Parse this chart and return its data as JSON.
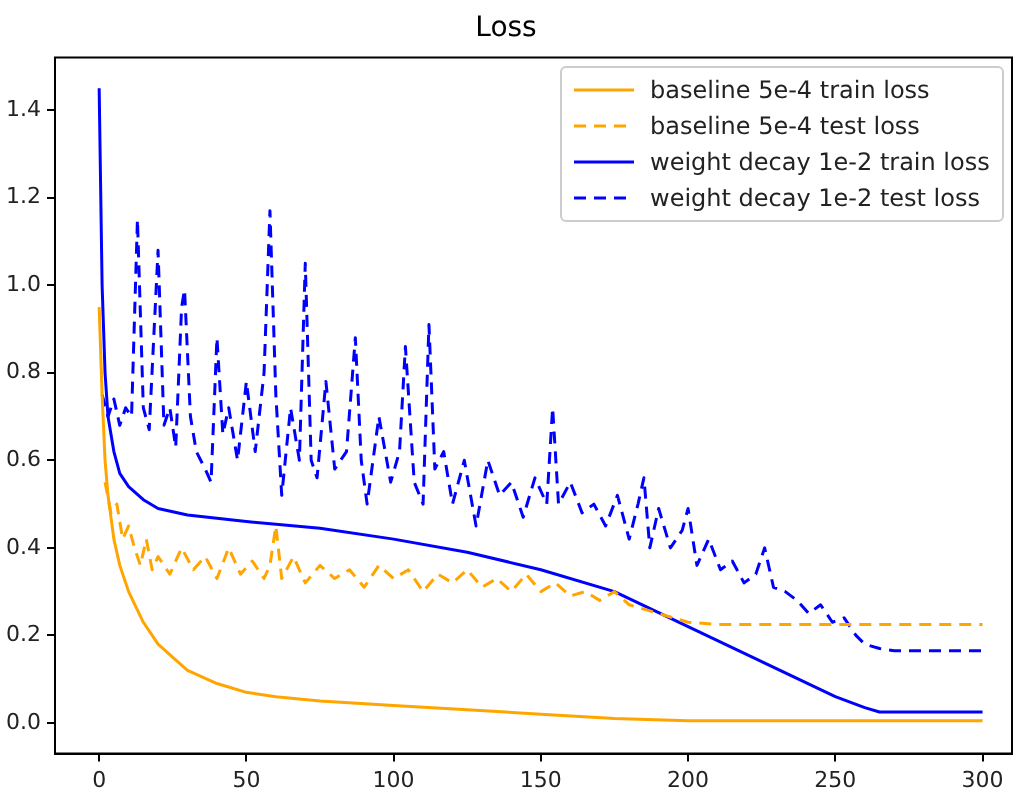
{
  "chart_data": {
    "type": "line",
    "title": "Loss",
    "xlim": [
      -15,
      310
    ],
    "ylim": [
      -0.07,
      1.52
    ],
    "xticks": [
      0,
      50,
      100,
      150,
      200,
      250,
      300
    ],
    "yticks": [
      {
        "value": 0,
        "label": "0.0"
      },
      {
        "value": 0.2,
        "label": "0.2"
      },
      {
        "value": 0.4,
        "label": "0.4"
      },
      {
        "value": 0.6,
        "label": "0.6"
      },
      {
        "value": 0.8,
        "label": "0.8"
      },
      {
        "value": 1,
        "label": "1.0"
      },
      {
        "value": 1.2,
        "label": "1.2"
      },
      {
        "value": 1.4,
        "label": "1.4"
      }
    ],
    "grid": false,
    "legend": "top right",
    "marker": "none",
    "series": [
      {
        "name": "baseline 5e-4 train loss",
        "color": "#ffa500",
        "line_style": "solid",
        "x": [
          0,
          1,
          2,
          3,
          5,
          7,
          10,
          15,
          20,
          25,
          30,
          40,
          50,
          60,
          75,
          100,
          125,
          150,
          175,
          200,
          250,
          300
        ],
        "values": [
          0.95,
          0.75,
          0.6,
          0.52,
          0.42,
          0.36,
          0.3,
          0.23,
          0.18,
          0.15,
          0.12,
          0.09,
          0.07,
          0.06,
          0.05,
          0.04,
          0.03,
          0.02,
          0.01,
          0.005,
          0.005,
          0.005
        ]
      },
      {
        "name": "baseline 5e-4 test loss",
        "color": "#ffa500",
        "line_style": "dashed",
        "x": [
          2,
          4,
          6,
          8,
          10,
          12,
          14,
          16,
          18,
          20,
          24,
          28,
          32,
          36,
          40,
          44,
          48,
          52,
          56,
          58,
          60,
          62,
          66,
          70,
          75,
          80,
          85,
          90,
          95,
          100,
          105,
          110,
          115,
          120,
          125,
          130,
          135,
          140,
          145,
          150,
          155,
          160,
          165,
          170,
          175,
          180,
          185,
          190,
          195,
          200,
          210,
          220,
          240,
          260,
          280,
          300
        ],
        "values": [
          0.55,
          0.48,
          0.5,
          0.42,
          0.45,
          0.4,
          0.36,
          0.42,
          0.35,
          0.38,
          0.34,
          0.4,
          0.35,
          0.38,
          0.33,
          0.4,
          0.34,
          0.37,
          0.33,
          0.36,
          0.45,
          0.33,
          0.38,
          0.32,
          0.36,
          0.33,
          0.35,
          0.31,
          0.36,
          0.33,
          0.35,
          0.3,
          0.34,
          0.32,
          0.35,
          0.31,
          0.33,
          0.3,
          0.34,
          0.3,
          0.32,
          0.29,
          0.3,
          0.28,
          0.3,
          0.27,
          0.26,
          0.25,
          0.24,
          0.23,
          0.225,
          0.225,
          0.225,
          0.225,
          0.225,
          0.225
        ]
      },
      {
        "name": "weight decay 1e-2 train loss",
        "color": "#0000ff",
        "line_style": "solid",
        "x": [
          0,
          1,
          2,
          3,
          5,
          7,
          10,
          15,
          20,
          30,
          50,
          75,
          100,
          125,
          150,
          175,
          200,
          225,
          250,
          260,
          265,
          280,
          300
        ],
        "values": [
          1.45,
          1.0,
          0.8,
          0.7,
          0.62,
          0.57,
          0.54,
          0.51,
          0.49,
          0.475,
          0.46,
          0.445,
          0.42,
          0.39,
          0.35,
          0.3,
          0.22,
          0.14,
          0.06,
          0.035,
          0.025,
          0.025,
          0.025
        ]
      },
      {
        "name": "weight decay 1e-2 test loss",
        "color": "#0000ff",
        "line_style": "dashed",
        "x": [
          1,
          3,
          5,
          7,
          9,
          11,
          13,
          15,
          17,
          20,
          22,
          24,
          26,
          28,
          29,
          31,
          33,
          36,
          38,
          40,
          42,
          44,
          47,
          50,
          53,
          56,
          58,
          60,
          62,
          65,
          68,
          70,
          72,
          74,
          77,
          80,
          84,
          87,
          89,
          91,
          95,
          99,
          102,
          104,
          107,
          110,
          112,
          114,
          117,
          120,
          124,
          128,
          132,
          136,
          140,
          144,
          148,
          152,
          154,
          156,
          160,
          164,
          168,
          172,
          176,
          180,
          183,
          185,
          187,
          190,
          194,
          198,
          200,
          203,
          207,
          211,
          215,
          219,
          223,
          226,
          229,
          233,
          237,
          241,
          245,
          249,
          253,
          257,
          260,
          265,
          270,
          280,
          300
        ],
        "values": [
          0.75,
          0.7,
          0.74,
          0.68,
          0.72,
          0.7,
          1.15,
          0.72,
          0.67,
          1.08,
          0.68,
          0.72,
          0.63,
          0.95,
          0.99,
          0.7,
          0.62,
          0.58,
          0.55,
          0.88,
          0.66,
          0.72,
          0.6,
          0.78,
          0.62,
          0.8,
          1.17,
          0.75,
          0.52,
          0.72,
          0.6,
          1.05,
          0.6,
          0.56,
          0.78,
          0.58,
          0.62,
          0.88,
          0.6,
          0.5,
          0.7,
          0.55,
          0.62,
          0.86,
          0.55,
          0.5,
          0.91,
          0.58,
          0.62,
          0.5,
          0.6,
          0.45,
          0.6,
          0.52,
          0.55,
          0.47,
          0.56,
          0.5,
          0.72,
          0.5,
          0.55,
          0.48,
          0.5,
          0.45,
          0.52,
          0.42,
          0.5,
          0.56,
          0.4,
          0.49,
          0.4,
          0.44,
          0.49,
          0.36,
          0.42,
          0.35,
          0.37,
          0.32,
          0.34,
          0.4,
          0.31,
          0.3,
          0.28,
          0.25,
          0.27,
          0.23,
          0.24,
          0.2,
          0.18,
          0.17,
          0.165,
          0.165,
          0.165
        ]
      }
    ]
  }
}
